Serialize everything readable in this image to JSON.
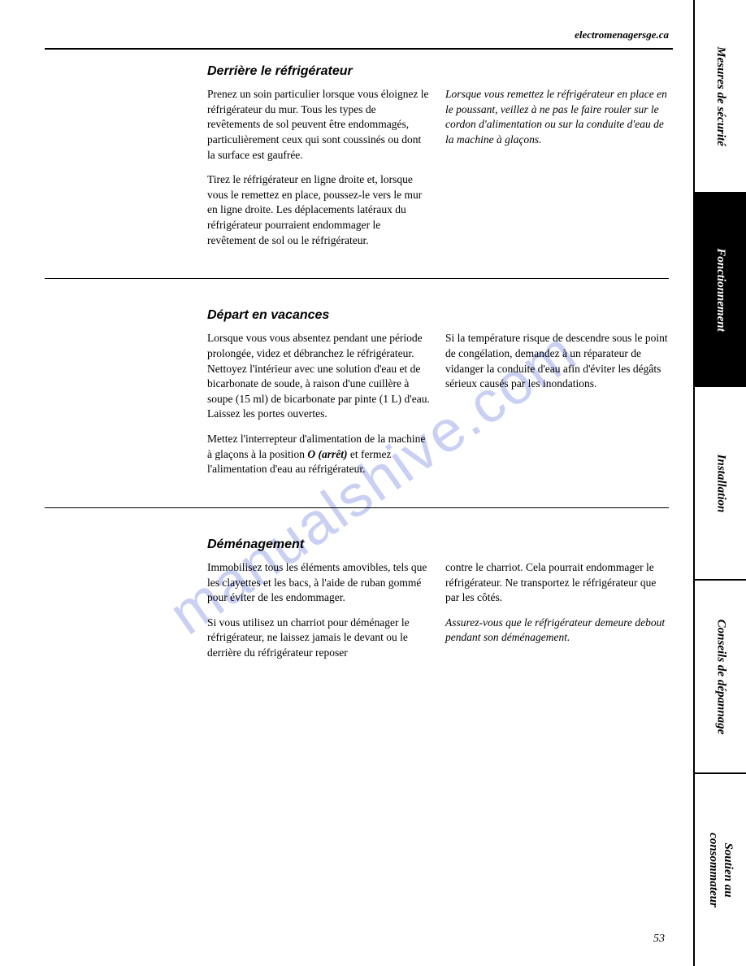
{
  "header": {
    "url": "electromenagersge.ca"
  },
  "sections": [
    {
      "title": "Derrière le réfrigérateur",
      "left_paragraphs": [
        "Prenez un soin particulier lorsque vous éloignez le réfrigérateur du mur. Tous les types de revêtements de sol peuvent être endommagés, particulièrement ceux qui sont coussinés ou dont la surface est gaufrée.",
        "Tirez le réfrigérateur en ligne droite et, lorsque vous le remettez en place, poussez-le vers le mur en ligne droite. Les déplacements latéraux du réfrigérateur pourraient endommager le revêtement de sol ou le réfrigérateur."
      ],
      "right_note": "Lorsque vous remettez le réfrigérateur en place en le poussant, veillez à ne pas le faire rouler sur le cordon d'alimentation ou sur la conduite d'eau de la machine à glaçons."
    },
    {
      "title": "Départ en vacances",
      "left_paragraphs": [
        "Lorsque vous vous absentez pendant une période prolongée, videz et débranchez le réfrigérateur. Nettoyez l'intérieur avec une solution d'eau et de bicarbonate de soude, à raison d'une cuillère à soupe (15 ml) de bicarbonate par pinte (1 L) d'eau. Laissez les portes ouvertes."
      ],
      "left_special_prefix": "Mettez l'interrepteur d'alimentation de la machine à glaçons à la position ",
      "left_special_bold": "O (arrêt)",
      "left_special_suffix": " et fermez l'alimentation d'eau au réfrigérateur.",
      "right_paragraphs": [
        "Si la température risque de descendre sous le point de congélation, demandez à un réparateur de vidanger la conduite d'eau afin d'éviter les dégâts sérieux causés par les inondations."
      ]
    },
    {
      "title": "Déménagement",
      "left_paragraphs": [
        "Immobilisez tous les éléments amovibles, tels que les clayettes et les bacs, à l'aide de ruban gommé pour éviter de les endommager.",
        "Si vous utilisez un charriot pour déménager le réfrigérateur, ne laissez jamais le devant ou le derrière du réfrigérateur reposer"
      ],
      "right_paragraphs": [
        "contre le charriot. Cela pourrait endommager le réfrigérateur. Ne transportez le réfrigérateur que par les côtés."
      ],
      "right_note": "Assurez-vous que le réfrigérateur demeure debout pendant son déménagement."
    }
  ],
  "tabs": [
    {
      "label": "Mesures de sécurité",
      "active": false
    },
    {
      "label": "Fonctionnement",
      "active": true
    },
    {
      "label": "Installation",
      "active": false
    },
    {
      "label": "Conseils de dépannage",
      "active": false
    },
    {
      "label": "Soutien au\nconsommateur",
      "active": false
    }
  ],
  "page_number": "53",
  "watermark": "manualshive.com"
}
